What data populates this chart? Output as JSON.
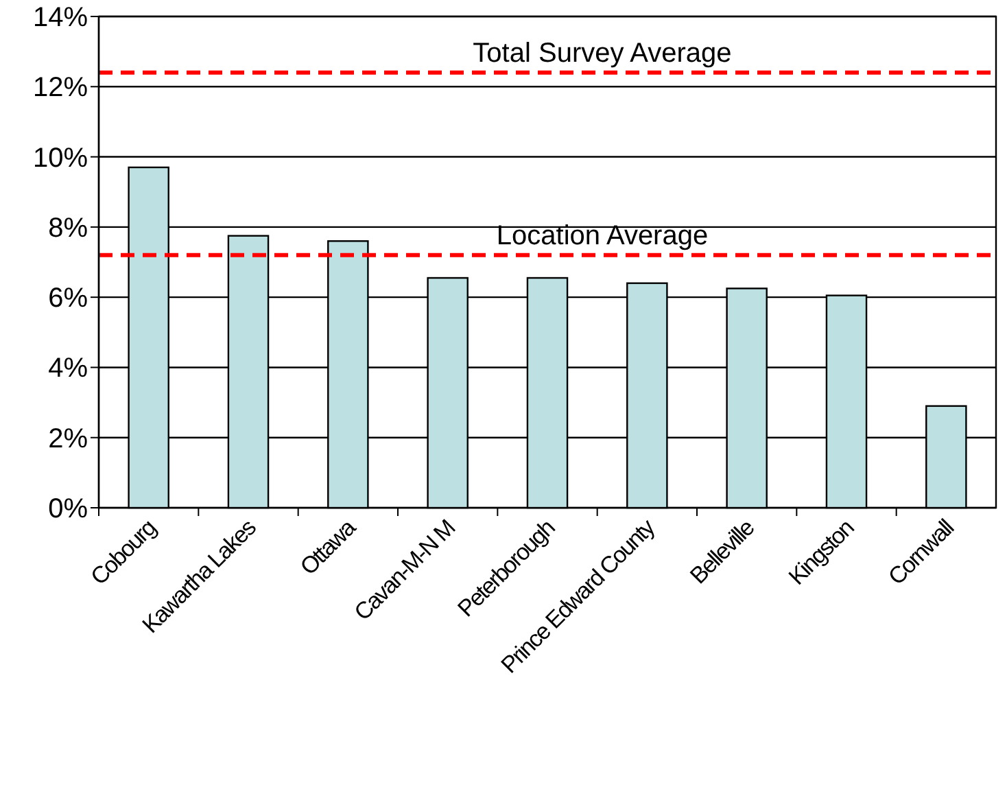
{
  "chart_data": {
    "type": "bar",
    "categories": [
      "Cobourg",
      "Kawartha Lakes",
      "Ottawa",
      "Cavan-M-N M",
      "Peterborough",
      "Prince Edward County",
      "Belleville",
      "Kingston",
      "Cornwall"
    ],
    "values": [
      9.7,
      7.75,
      7.6,
      6.55,
      6.55,
      6.4,
      6.25,
      6.05,
      2.9
    ],
    "color": "#bde0e3",
    "ylim": [
      0,
      14
    ],
    "yticks": [
      {
        "value": 0,
        "label": "0%"
      },
      {
        "value": 2,
        "label": "2%"
      },
      {
        "value": 4,
        "label": "4%"
      },
      {
        "value": 6,
        "label": "6%"
      },
      {
        "value": 8,
        "label": "8%"
      },
      {
        "value": 10,
        "label": "10%"
      },
      {
        "value": 12,
        "label": "12%"
      },
      {
        "value": 14,
        "label": "14%"
      }
    ],
    "grid": "y",
    "ref_lines": [
      {
        "axis": "y",
        "value": 12.4,
        "label": "Total Survey Average",
        "color": "#ff0000",
        "line_style": "dashed"
      },
      {
        "axis": "y",
        "value": 7.2,
        "label": "Location Average",
        "color": "#ff0000",
        "line_style": "dashed"
      }
    ]
  }
}
